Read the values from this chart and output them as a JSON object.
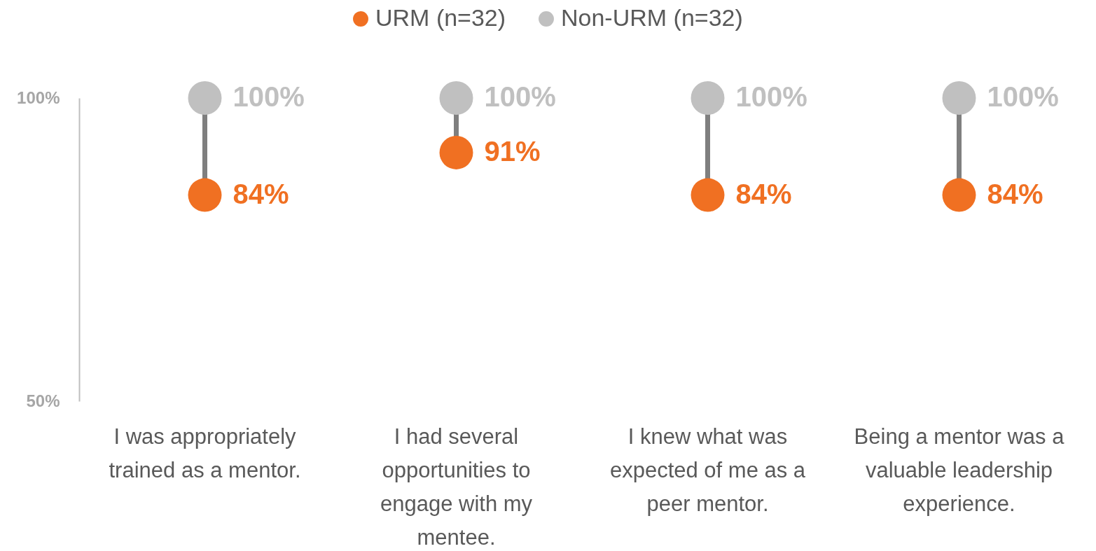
{
  "chart_data": {
    "type": "scatter",
    "categories": [
      "I was appropriately trained as a mentor.",
      "I had several opportunities to engage with my mentee.",
      "I knew what was expected of me as a peer mentor.",
      "Being a mentor was a valuable leadership experience."
    ],
    "series": [
      {
        "name": "URM (n=32)",
        "color": "#f07022",
        "values": [
          84,
          91,
          84,
          84
        ],
        "value_labels": [
          "84%",
          "91%",
          "84%",
          "84%"
        ]
      },
      {
        "name": "Non-URM (n=32)",
        "color": "#c0c0c0",
        "values": [
          100,
          100,
          100,
          100
        ],
        "value_labels": [
          "100%",
          "100%",
          "100%",
          "100%"
        ]
      }
    ],
    "ylim": [
      50,
      100
    ],
    "yticks": [
      {
        "value": 50,
        "label": "50%"
      },
      {
        "value": 100,
        "label": "100%"
      }
    ],
    "legend": "top",
    "grid": false,
    "marker": "circle"
  }
}
